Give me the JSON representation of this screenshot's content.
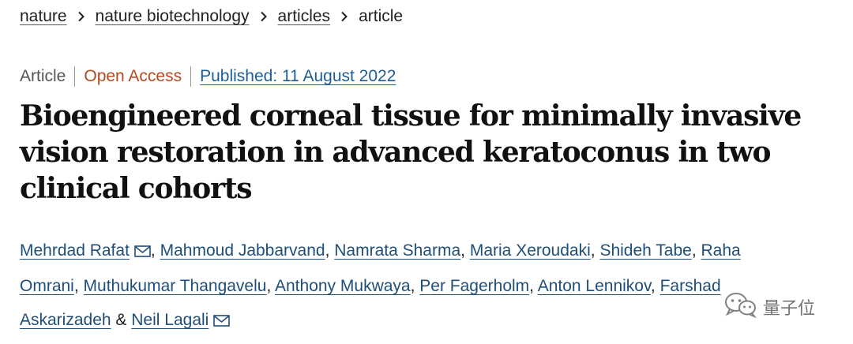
{
  "breadcrumb": {
    "items": [
      {
        "label": "nature",
        "link": true
      },
      {
        "label": "nature biotechnology",
        "link": true
      },
      {
        "label": "articles",
        "link": true
      },
      {
        "label": "article",
        "link": false
      }
    ]
  },
  "meta": {
    "type": "Article",
    "access": "Open Access",
    "published": "Published: 11 August 2022"
  },
  "title": "Bioengineered corneal tissue for minimally invasive vision restoration in advanced keratoconus in two clinical cohorts",
  "authors": [
    {
      "name": "Mehrdad Rafat",
      "email": true
    },
    {
      "name": "Mahmoud Jabbarvand",
      "email": false
    },
    {
      "name": "Namrata Sharma",
      "email": false
    },
    {
      "name": "Maria Xeroudaki",
      "email": false
    },
    {
      "name": "Shideh Tabe",
      "email": false
    },
    {
      "name": "Raha Omrani",
      "email": false
    },
    {
      "name": "Muthukumar Thangavelu",
      "email": false
    },
    {
      "name": "Anthony Mukwaya",
      "email": false
    },
    {
      "name": "Per Fagerholm",
      "email": false
    },
    {
      "name": "Anton Lennikov",
      "email": false
    },
    {
      "name": "Farshad Askarizadeh",
      "email": false
    },
    {
      "name": "Neil Lagali",
      "email": true
    }
  ],
  "authors_separator": ",",
  "authors_last_separator": "&",
  "watermark": {
    "text": "量子位",
    "icon": "wechat-icon"
  },
  "colors": {
    "open_access": "#b4491f",
    "published_link": "#1f5d95",
    "author_link": "#1f4e79"
  }
}
